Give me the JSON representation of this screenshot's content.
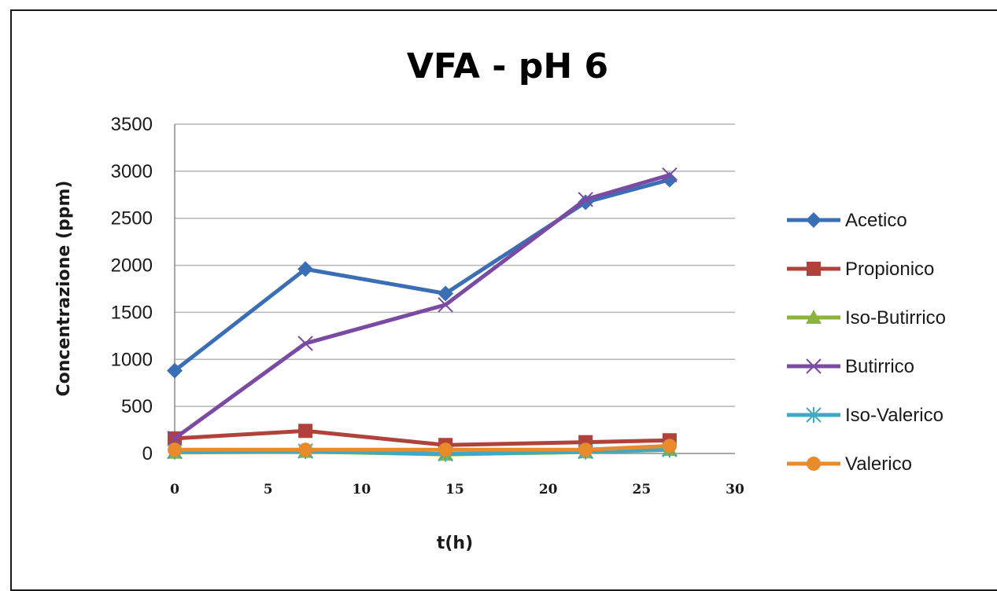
{
  "chart_data": {
    "type": "line",
    "title": "VFA - pH 6",
    "xlabel": "t(h)",
    "ylabel": "Concentrazione (ppm)",
    "xlim": [
      0,
      30
    ],
    "ylim": [
      0,
      3500
    ],
    "x_ticks": [
      "0",
      "5",
      "10",
      "15",
      "20",
      "25",
      "30"
    ],
    "y_ticks": [
      "0",
      "500",
      "1000",
      "1500",
      "2000",
      "2500",
      "3000",
      "3500"
    ],
    "grid": "horizontal",
    "legend_position": "right",
    "x": [
      0,
      7,
      14.5,
      22,
      26.5
    ],
    "series": [
      {
        "name": "Acetico",
        "color": "#3a6fb5",
        "marker": "diamond",
        "values": [
          880,
          1960,
          1700,
          2670,
          2910
        ]
      },
      {
        "name": "Propionico",
        "color": "#b0423b",
        "marker": "square",
        "values": [
          160,
          240,
          90,
          120,
          140
        ]
      },
      {
        "name": "Iso-Butirrico",
        "color": "#8db33f",
        "marker": "triangle",
        "values": [
          10,
          20,
          -10,
          15,
          40
        ]
      },
      {
        "name": "Butirrico",
        "color": "#7b4aa3",
        "marker": "x",
        "values": [
          160,
          1170,
          1580,
          2700,
          2960
        ]
      },
      {
        "name": "Iso-Valerico",
        "color": "#3fa8c4",
        "marker": "star",
        "values": [
          20,
          25,
          -5,
          20,
          40
        ]
      },
      {
        "name": "Valerico",
        "color": "#e98b2a",
        "marker": "circle",
        "values": [
          40,
          40,
          40,
          40,
          80
        ]
      }
    ]
  }
}
